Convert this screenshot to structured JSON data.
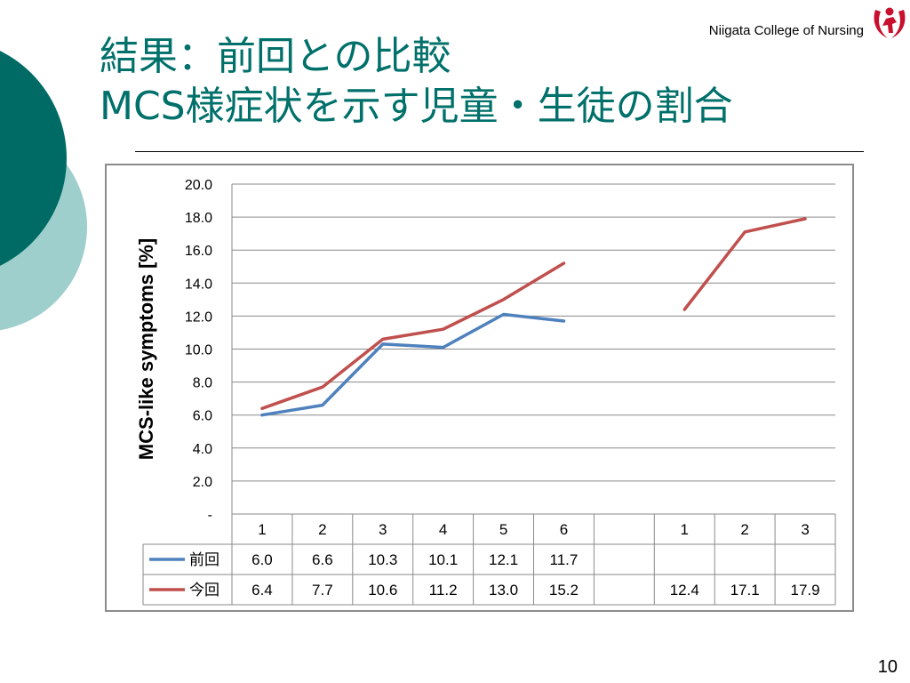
{
  "slide": {
    "title_line1": "結果：前回との比較",
    "title_line2": "MCS様症状を示す児童・生徒の割合",
    "college": "Niigata College of Nursing",
    "page_number": "10"
  },
  "colors": {
    "title": "#00706A",
    "deco_dark": "#006B65",
    "deco_light": "#9ECFCC",
    "series_prev": "#4F81BD",
    "series_curr": "#C0504D",
    "logo": "#C8102E"
  },
  "chart_data": {
    "type": "line",
    "ylabel": "MCS-like symptoms [%]",
    "ylim": [
      0,
      20
    ],
    "ytick_labels": [
      "-",
      "2.0",
      "4.0",
      "6.0",
      "8.0",
      "10.0",
      "12.0",
      "14.0",
      "16.0",
      "18.0",
      "20.0"
    ],
    "categories": [
      "1",
      "2",
      "3",
      "4",
      "5",
      "6",
      "",
      "1",
      "2",
      "3"
    ],
    "grid": true,
    "legend": "data-table",
    "series": [
      {
        "name": "前回",
        "color": "#4F81BD",
        "values": [
          6.0,
          6.6,
          10.3,
          10.1,
          12.1,
          11.7,
          null,
          null,
          null,
          null
        ],
        "labels": [
          "6.0",
          "6.6",
          "10.3",
          "10.1",
          "12.1",
          "11.7",
          "",
          "",
          "",
          ""
        ]
      },
      {
        "name": "今回",
        "color": "#C0504D",
        "values": [
          6.4,
          7.7,
          10.6,
          11.2,
          13.0,
          15.2,
          null,
          12.4,
          17.1,
          17.9
        ],
        "labels": [
          "6.4",
          "7.7",
          "10.6",
          "11.2",
          "13.0",
          "15.2",
          "",
          "12.4",
          "17.1",
          "17.9"
        ]
      }
    ]
  }
}
